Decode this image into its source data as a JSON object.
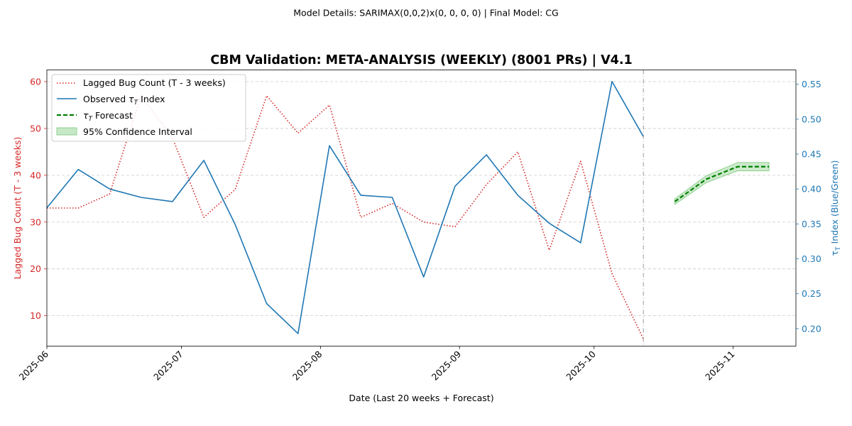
{
  "suptitle": "Model Details: SARIMAX(0,0,2)x(0, 0, 0, 0) | Final Model: CG",
  "colors": {
    "bug": "#d62728",
    "tau": "#1f77b4",
    "forecast": "#008000",
    "ci": "#8fd18f",
    "grid": "#cccccc",
    "vline": "#999999"
  },
  "chart_data": {
    "type": "line",
    "title": "CBM Validation: META-ANALYSIS (WEEKLY) (8001 PRs) | V4.1",
    "xlabel": "Date (Last 20 weeks + Forecast)",
    "ylabel_left": "Lagged Bug Count (T - 3 weeks)",
    "ylabel_right_prefix": "τ",
    "ylabel_right_sub": "T",
    "ylabel_right_suffix": " Index (Blue/Green)",
    "xlim": [
      "2025-06-01",
      "2025-11-15"
    ],
    "ylim_left": [
      3.5,
      62.5
    ],
    "ylim_right": [
      0.175,
      0.5705
    ],
    "x_ticks": [
      "2025-06",
      "2025-07",
      "2025-08",
      "2025-09",
      "2025-10",
      "2025-11"
    ],
    "x_tick_dates": [
      "2025-06-01",
      "2025-07-01",
      "2025-08-01",
      "2025-09-01",
      "2025-10-01",
      "2025-11-01"
    ],
    "y_left_ticks": [
      10,
      20,
      30,
      40,
      50,
      60
    ],
    "y_right_ticks": [
      0.2,
      0.25,
      0.3,
      0.35,
      0.4,
      0.45,
      0.5,
      0.55
    ],
    "grid": true,
    "forecast_start_marker": "2025-10-12",
    "legend_position": "top-left",
    "series": [
      {
        "name": "Lagged Bug Count (T - 3 weeks)",
        "axis": "left",
        "style": "dotted",
        "x": [
          "2025-06-01",
          "2025-06-08",
          "2025-06-15",
          "2025-06-22",
          "2025-06-29",
          "2025-07-06",
          "2025-07-13",
          "2025-07-20",
          "2025-07-27",
          "2025-08-03",
          "2025-08-10",
          "2025-08-17",
          "2025-08-24",
          "2025-08-31",
          "2025-09-07",
          "2025-09-14",
          "2025-09-21",
          "2025-09-28",
          "2025-10-05",
          "2025-10-12"
        ],
        "values": [
          33,
          33,
          36,
          57,
          48,
          31,
          37,
          57,
          49,
          55,
          31,
          34,
          30,
          29,
          38,
          45,
          24,
          43,
          19,
          5
        ]
      },
      {
        "name_prefix": "Observed ",
        "name_symbol": "τ",
        "name_sub": "T",
        "name_suffix": " Index",
        "axis": "right",
        "style": "solid",
        "x": [
          "2025-06-01",
          "2025-06-08",
          "2025-06-15",
          "2025-06-22",
          "2025-06-29",
          "2025-07-06",
          "2025-07-13",
          "2025-07-20",
          "2025-07-27",
          "2025-08-03",
          "2025-08-10",
          "2025-08-17",
          "2025-08-24",
          "2025-08-31",
          "2025-09-07",
          "2025-09-14",
          "2025-09-21",
          "2025-09-28",
          "2025-10-05",
          "2025-10-12"
        ],
        "values": [
          0.373,
          0.428,
          0.4,
          0.388,
          0.382,
          0.441,
          0.349,
          0.236,
          0.193,
          0.462,
          0.391,
          0.388,
          0.274,
          0.404,
          0.449,
          0.391,
          0.351,
          0.323,
          0.554,
          0.475
        ]
      },
      {
        "name_prefix": "",
        "name_symbol": "τ",
        "name_sub": "T",
        "name_suffix": " Forecast",
        "axis": "right",
        "style": "dashed",
        "x": [
          "2025-10-19",
          "2025-10-26",
          "2025-11-02",
          "2025-11-09"
        ],
        "values": [
          0.382,
          0.414,
          0.432,
          0.432
        ]
      }
    ],
    "confidence_interval": {
      "name": "95% Confidence Interval",
      "x": [
        "2025-10-19",
        "2025-10-26",
        "2025-11-02",
        "2025-11-09"
      ],
      "lower": [
        0.378,
        0.409,
        0.426,
        0.426
      ],
      "upper": [
        0.386,
        0.419,
        0.438,
        0.438
      ]
    }
  }
}
